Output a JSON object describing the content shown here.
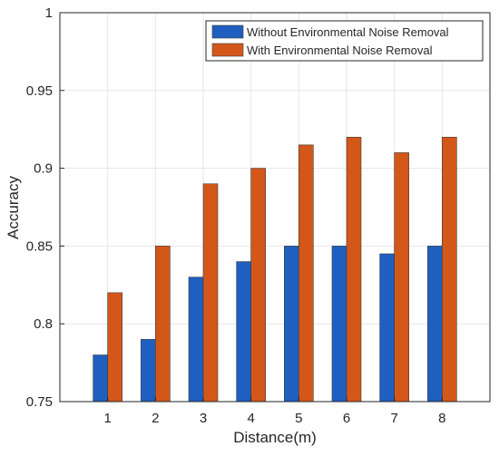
{
  "chart_data": {
    "type": "bar",
    "title": "",
    "xlabel": "Distance(m)",
    "ylabel": "Accuracy",
    "categories": [
      "1",
      "2",
      "3",
      "4",
      "5",
      "6",
      "7",
      "8"
    ],
    "series": [
      {
        "name": "Without Environmental Noise Removal",
        "color": "#1f5fbf",
        "values": [
          0.78,
          0.79,
          0.83,
          0.84,
          0.85,
          0.85,
          0.845,
          0.85
        ]
      },
      {
        "name": "With Environmental Noise Removal",
        "color": "#d4571a",
        "values": [
          0.82,
          0.85,
          0.89,
          0.9,
          0.915,
          0.92,
          0.91,
          0.92
        ]
      }
    ],
    "ylim": [
      0.75,
      1.0
    ],
    "yticks": [
      "0.75",
      "0.8",
      "0.85",
      "0.9",
      "0.95",
      "1"
    ],
    "grid": true,
    "legend_position": "top-right"
  }
}
